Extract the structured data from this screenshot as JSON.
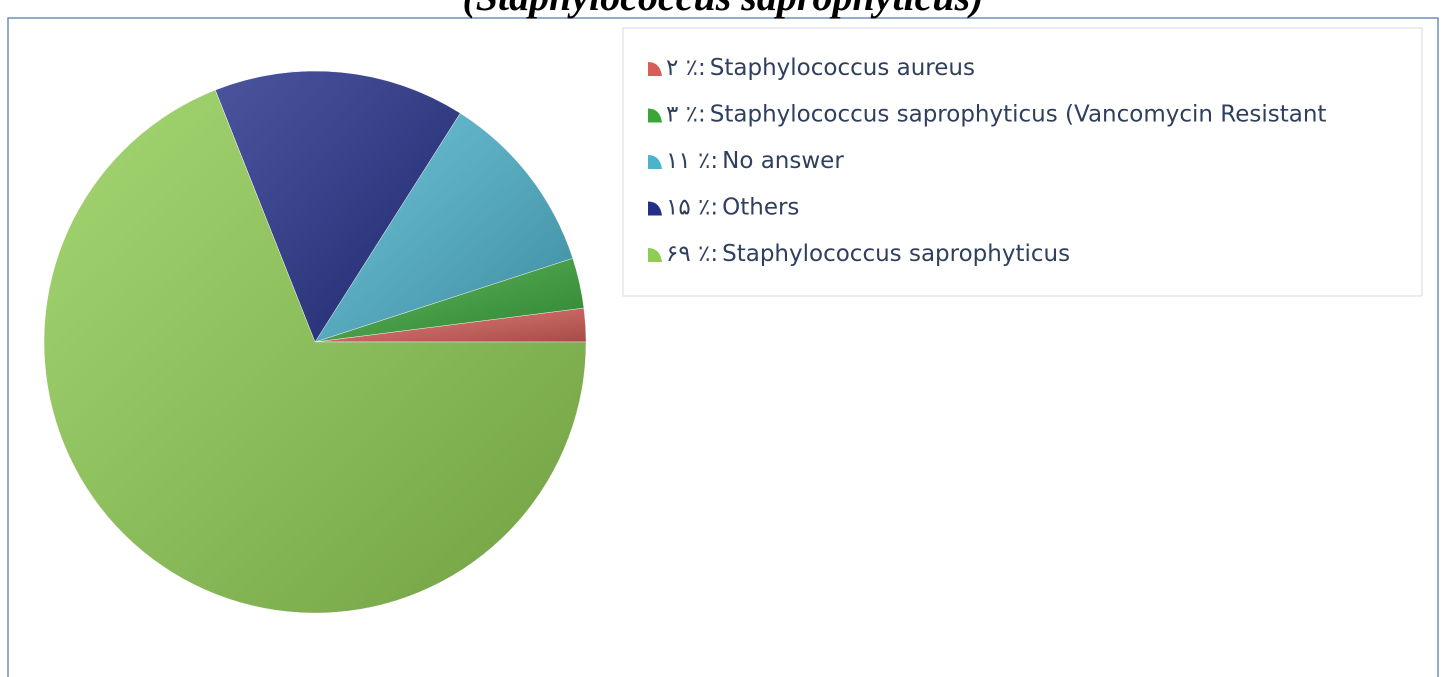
{
  "chart_data": {
    "type": "pie",
    "title": "(Staphylococcus saprophyticus)",
    "categories": [
      "Staphylococcus aureus",
      "Staphylococcus saprophyticus (Vancomycin Resistant",
      "No answer",
      "Others",
      "Staphylococcus saprophyticus"
    ],
    "values": [
      2,
      3,
      11,
      15,
      69
    ],
    "value_labels": [
      "۲ ٪:",
      "۳ ٪:",
      "۱۱ ٪:",
      "۱۵ ٪:",
      "۶۹ ٪:"
    ],
    "colors": [
      "#d65f5a",
      "#3aa63a",
      "#4db3cc",
      "#232f88",
      "#8fcc52"
    ]
  }
}
